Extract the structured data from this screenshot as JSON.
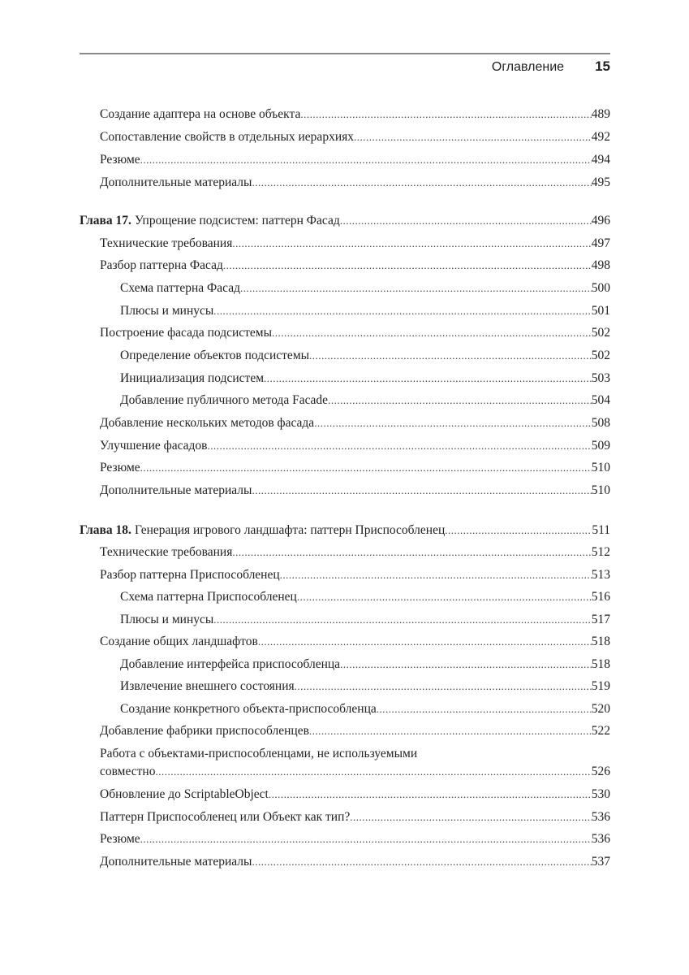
{
  "header": {
    "section": "Оглавление",
    "page_number": "15"
  },
  "entries": [
    {
      "level": 1,
      "title": "Создание адаптера на основе объекта",
      "page": "489"
    },
    {
      "level": 1,
      "title": "Сопоставление свойств в отдельных иерархиях",
      "page": "492"
    },
    {
      "level": 1,
      "title": "Резюме",
      "page": "494"
    },
    {
      "level": 1,
      "title": "Дополнительные материалы",
      "page": "495"
    },
    {
      "level": 0,
      "label": "Глава 17.",
      "title": "Упрощение подсистем: паттерн Фасад",
      "page": "496"
    },
    {
      "level": 1,
      "title": "Технические требования",
      "page": "497"
    },
    {
      "level": 1,
      "title": "Разбор паттерна Фасад",
      "page": "498"
    },
    {
      "level": 2,
      "title": "Схема паттерна Фасад",
      "page": "500"
    },
    {
      "level": 2,
      "title": "Плюсы и минусы",
      "page": "501"
    },
    {
      "level": 1,
      "title": "Построение фасада подсистемы",
      "page": "502"
    },
    {
      "level": 2,
      "title": "Определение объектов подсистемы",
      "page": "502"
    },
    {
      "level": 2,
      "title": "Инициализация подсистем",
      "page": "503"
    },
    {
      "level": 2,
      "title": "Добавление публичного метода Facade",
      "page": "504"
    },
    {
      "level": 1,
      "title": "Добавление нескольких методов фасада",
      "page": "508"
    },
    {
      "level": 1,
      "title": "Улучшение фасадов",
      "page": "509"
    },
    {
      "level": 1,
      "title": "Резюме",
      "page": "510"
    },
    {
      "level": 1,
      "title": "Дополнительные материалы",
      "page": "510"
    },
    {
      "level": 0,
      "label": "Глава 18.",
      "title": "Генерация игрового ландшафта: паттерн Приспособленец",
      "page": "511"
    },
    {
      "level": 1,
      "title": "Технические требования",
      "page": "512"
    },
    {
      "level": 1,
      "title": "Разбор паттерна Приспособленец",
      "page": "513"
    },
    {
      "level": 2,
      "title": "Схема паттерна Приспособленец",
      "page": "516"
    },
    {
      "level": 2,
      "title": "Плюсы и минусы",
      "page": "517"
    },
    {
      "level": 1,
      "title": "Создание общих ландшафтов",
      "page": "518"
    },
    {
      "level": 2,
      "title": "Добавление интерфейса приспособленца",
      "page": "518"
    },
    {
      "level": 2,
      "title": "Извлечение внешнего состояния",
      "page": "519"
    },
    {
      "level": 2,
      "title": "Создание конкретного объекта-приспособленца",
      "page": "520"
    },
    {
      "level": 1,
      "title": "Добавление фабрики приспособленцев",
      "page": "522"
    },
    {
      "level": 1,
      "title_first_line": "Работа с объектами-приспособленцами, не используемыми",
      "title": "совместно",
      "page": "526"
    },
    {
      "level": 1,
      "title": "Обновление до ScriptableObject",
      "page": "530"
    },
    {
      "level": 1,
      "title": "Паттерн Приспособленец или Объект как тип?",
      "page": "536"
    },
    {
      "level": 1,
      "title": "Резюме",
      "page": "536"
    },
    {
      "level": 1,
      "title": "Дополнительные материалы",
      "page": "537"
    }
  ]
}
